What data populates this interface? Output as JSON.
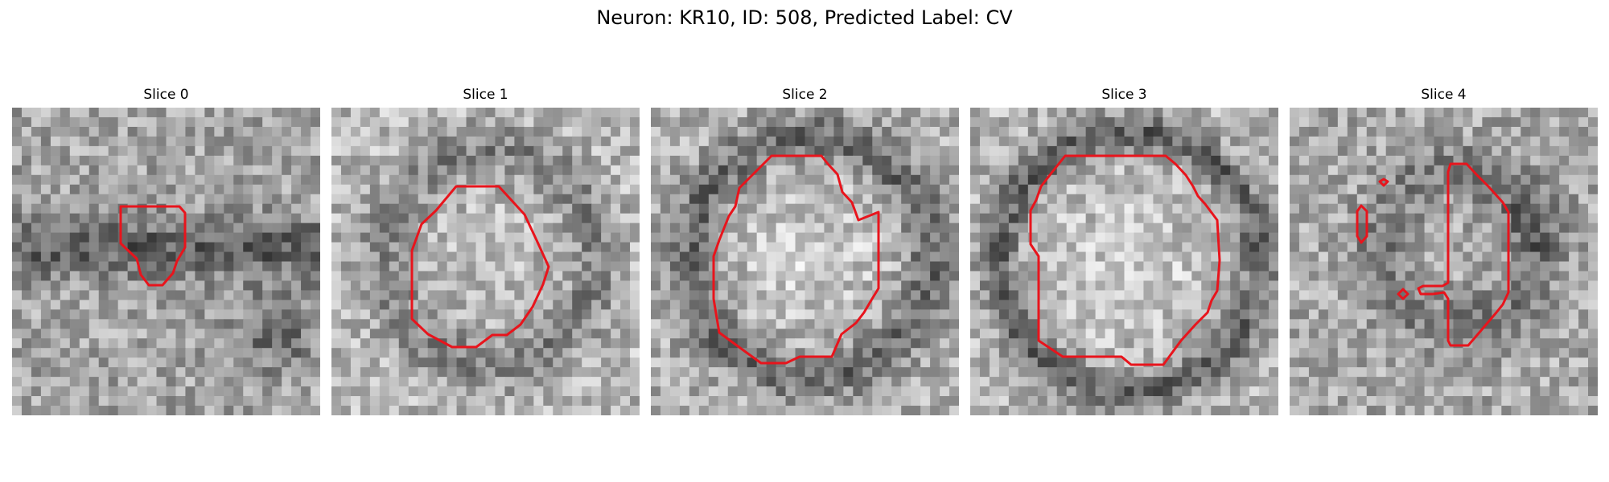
{
  "figure": {
    "title": "Neuron: KR10, ID: 508, Predicted Label: CV"
  },
  "contour_color": "#e8141c",
  "colormap": "grayscale",
  "panels": [
    {
      "title": "Slice 0"
    },
    {
      "title": "Slice 1"
    },
    {
      "title": "Slice 2"
    },
    {
      "title": "Slice 3"
    },
    {
      "title": "Slice 4"
    }
  ]
}
